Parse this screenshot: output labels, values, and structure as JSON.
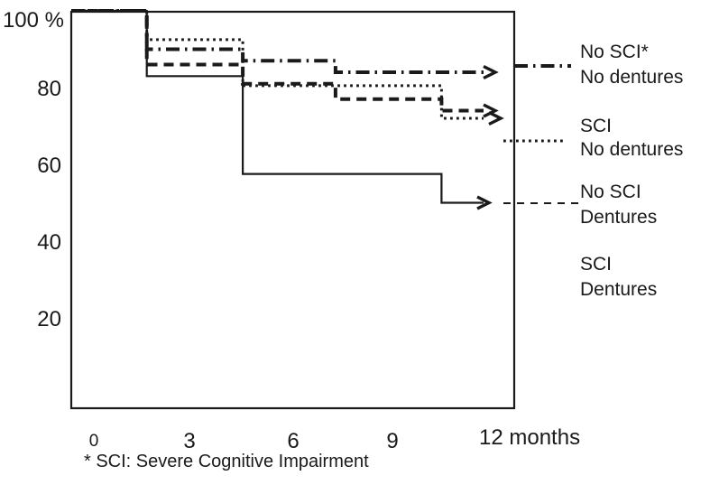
{
  "figure": {
    "background": "#ffffff",
    "line_color": "#1a1a1a",
    "footnote": "*  SCI: Severe Cognitive Impairment"
  },
  "chart_data": {
    "type": "line",
    "subtype": "kaplan-meier-step-survival",
    "title": "",
    "xlabel": "months",
    "ylabel": "%",
    "xlim": [
      0,
      12
    ],
    "ylim": [
      0,
      100
    ],
    "grid": false,
    "legend_position": "right-outside",
    "y_ticks": [
      {
        "label": "100 %",
        "pct": 100
      },
      {
        "label": "80",
        "pct": 80
      },
      {
        "label": "60",
        "pct": 60
      },
      {
        "label": "40",
        "pct": 40
      },
      {
        "label": "20",
        "pct": 20
      }
    ],
    "x_ticks": [
      {
        "label": "0",
        "month": 0
      },
      {
        "label": "3",
        "month": 3
      },
      {
        "label": "6",
        "month": 6
      },
      {
        "label": "9",
        "month": 9
      },
      {
        "label": "12 months",
        "month": 12
      }
    ],
    "series": [
      {
        "name": "no-sci-no-dentures",
        "legend_lines": [
          "No SCI*",
          "No dentures"
        ],
        "pattern": "dash-dot",
        "start_pct": 100,
        "steps": [
          [
            1.6,
            90
          ],
          [
            4.5,
            87
          ],
          [
            7.3,
            84
          ]
        ],
        "censored_arrow_month": 12
      },
      {
        "name": "sci-no-dentures",
        "legend_lines": [
          "SCI",
          "No dentures"
        ],
        "pattern": "dotted",
        "start_pct": 100,
        "steps": [
          [
            1.6,
            92.5
          ],
          [
            4.5,
            80.5
          ],
          [
            10.5,
            72
          ]
        ],
        "censored_arrow_month": 12
      },
      {
        "name": "no-sci-dentures",
        "legend_lines": [
          "No SCI",
          "Dentures"
        ],
        "pattern": "dashed",
        "start_pct": 100,
        "steps": [
          [
            1.6,
            86
          ],
          [
            4.5,
            81
          ],
          [
            7.3,
            77
          ],
          [
            10.5,
            74
          ]
        ],
        "censored_arrow_month": 12
      },
      {
        "name": "sci-dentures",
        "legend_lines": [
          "SCI",
          "Dentures"
        ],
        "pattern": "solid",
        "start_pct": 100,
        "steps": [
          [
            1.6,
            83
          ],
          [
            4.5,
            57.5
          ],
          [
            10.5,
            50
          ]
        ],
        "censored_arrow_month": 12
      }
    ]
  }
}
